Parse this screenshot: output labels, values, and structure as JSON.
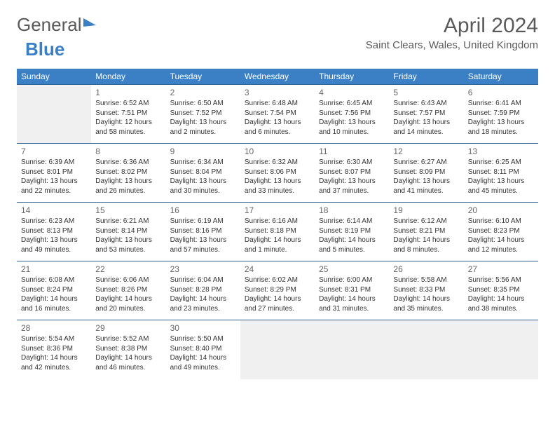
{
  "logo": {
    "text1": "General",
    "text2": "Blue"
  },
  "header": {
    "month": "April 2024",
    "location": "Saint Clears, Wales, United Kingdom"
  },
  "calendar": {
    "type": "table",
    "header_bg": "#3b7fc4",
    "header_fg": "#ffffff",
    "border_color": "#2a5d8f",
    "empty_bg": "#f0f0f0",
    "font_size_body": 10,
    "font_size_daynum": 12,
    "columns": [
      "Sunday",
      "Monday",
      "Tuesday",
      "Wednesday",
      "Thursday",
      "Friday",
      "Saturday"
    ],
    "days": [
      null,
      {
        "n": "1",
        "sr": "6:52 AM",
        "ss": "7:51 PM",
        "dl": "12 hours and 58 minutes."
      },
      {
        "n": "2",
        "sr": "6:50 AM",
        "ss": "7:52 PM",
        "dl": "13 hours and 2 minutes."
      },
      {
        "n": "3",
        "sr": "6:48 AM",
        "ss": "7:54 PM",
        "dl": "13 hours and 6 minutes."
      },
      {
        "n": "4",
        "sr": "6:45 AM",
        "ss": "7:56 PM",
        "dl": "13 hours and 10 minutes."
      },
      {
        "n": "5",
        "sr": "6:43 AM",
        "ss": "7:57 PM",
        "dl": "13 hours and 14 minutes."
      },
      {
        "n": "6",
        "sr": "6:41 AM",
        "ss": "7:59 PM",
        "dl": "13 hours and 18 minutes."
      },
      {
        "n": "7",
        "sr": "6:39 AM",
        "ss": "8:01 PM",
        "dl": "13 hours and 22 minutes."
      },
      {
        "n": "8",
        "sr": "6:36 AM",
        "ss": "8:02 PM",
        "dl": "13 hours and 26 minutes."
      },
      {
        "n": "9",
        "sr": "6:34 AM",
        "ss": "8:04 PM",
        "dl": "13 hours and 30 minutes."
      },
      {
        "n": "10",
        "sr": "6:32 AM",
        "ss": "8:06 PM",
        "dl": "13 hours and 33 minutes."
      },
      {
        "n": "11",
        "sr": "6:30 AM",
        "ss": "8:07 PM",
        "dl": "13 hours and 37 minutes."
      },
      {
        "n": "12",
        "sr": "6:27 AM",
        "ss": "8:09 PM",
        "dl": "13 hours and 41 minutes."
      },
      {
        "n": "13",
        "sr": "6:25 AM",
        "ss": "8:11 PM",
        "dl": "13 hours and 45 minutes."
      },
      {
        "n": "14",
        "sr": "6:23 AM",
        "ss": "8:13 PM",
        "dl": "13 hours and 49 minutes."
      },
      {
        "n": "15",
        "sr": "6:21 AM",
        "ss": "8:14 PM",
        "dl": "13 hours and 53 minutes."
      },
      {
        "n": "16",
        "sr": "6:19 AM",
        "ss": "8:16 PM",
        "dl": "13 hours and 57 minutes."
      },
      {
        "n": "17",
        "sr": "6:16 AM",
        "ss": "8:18 PM",
        "dl": "14 hours and 1 minute."
      },
      {
        "n": "18",
        "sr": "6:14 AM",
        "ss": "8:19 PM",
        "dl": "14 hours and 5 minutes."
      },
      {
        "n": "19",
        "sr": "6:12 AM",
        "ss": "8:21 PM",
        "dl": "14 hours and 8 minutes."
      },
      {
        "n": "20",
        "sr": "6:10 AM",
        "ss": "8:23 PM",
        "dl": "14 hours and 12 minutes."
      },
      {
        "n": "21",
        "sr": "6:08 AM",
        "ss": "8:24 PM",
        "dl": "14 hours and 16 minutes."
      },
      {
        "n": "22",
        "sr": "6:06 AM",
        "ss": "8:26 PM",
        "dl": "14 hours and 20 minutes."
      },
      {
        "n": "23",
        "sr": "6:04 AM",
        "ss": "8:28 PM",
        "dl": "14 hours and 23 minutes."
      },
      {
        "n": "24",
        "sr": "6:02 AM",
        "ss": "8:29 PM",
        "dl": "14 hours and 27 minutes."
      },
      {
        "n": "25",
        "sr": "6:00 AM",
        "ss": "8:31 PM",
        "dl": "14 hours and 31 minutes."
      },
      {
        "n": "26",
        "sr": "5:58 AM",
        "ss": "8:33 PM",
        "dl": "14 hours and 35 minutes."
      },
      {
        "n": "27",
        "sr": "5:56 AM",
        "ss": "8:35 PM",
        "dl": "14 hours and 38 minutes."
      },
      {
        "n": "28",
        "sr": "5:54 AM",
        "ss": "8:36 PM",
        "dl": "14 hours and 42 minutes."
      },
      {
        "n": "29",
        "sr": "5:52 AM",
        "ss": "8:38 PM",
        "dl": "14 hours and 46 minutes."
      },
      {
        "n": "30",
        "sr": "5:50 AM",
        "ss": "8:40 PM",
        "dl": "14 hours and 49 minutes."
      },
      null,
      null,
      null,
      null
    ],
    "labels": {
      "sunrise": "Sunrise: ",
      "sunset": "Sunset: ",
      "daylight": "Daylight: "
    }
  }
}
